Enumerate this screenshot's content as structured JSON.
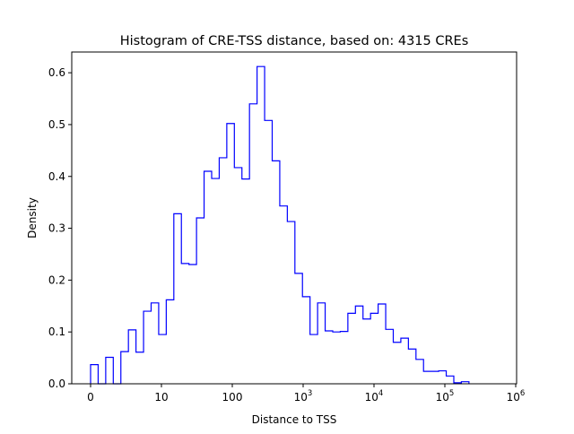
{
  "chart_data": {
    "type": "histogram-step",
    "title": "Histogram of CRE-TSS distance, based on: 4315 CREs",
    "xlabel": "Distance to TSS",
    "ylabel": "Density",
    "x_scale": "log10(distance+1)",
    "xlim": [
      -0.3,
      6
    ],
    "ylim": [
      0,
      0.64
    ],
    "x_ticks": [
      {
        "value": 0,
        "label": "0",
        "sup": ""
      },
      {
        "value": 1,
        "label": "10",
        "sup": ""
      },
      {
        "value": 2,
        "label": "100",
        "sup": ""
      },
      {
        "value": 3,
        "label": "10",
        "sup": "3"
      },
      {
        "value": 4,
        "label": "10",
        "sup": "4"
      },
      {
        "value": 5,
        "label": "10",
        "sup": "5"
      },
      {
        "value": 6,
        "label": "10",
        "sup": "6"
      }
    ],
    "y_ticks": [
      {
        "value": 0.0,
        "label": "0.0"
      },
      {
        "value": 0.1,
        "label": "0.1"
      },
      {
        "value": 0.2,
        "label": "0.2"
      },
      {
        "value": 0.3,
        "label": "0.3"
      },
      {
        "value": 0.4,
        "label": "0.4"
      },
      {
        "value": 0.5,
        "label": "0.5"
      },
      {
        "value": 0.6,
        "label": "0.6"
      }
    ],
    "bin_start": 0,
    "bin_end": 5.34,
    "densities": [
      0.037,
      0.0,
      0.051,
      0.0,
      0.062,
      0.104,
      0.061,
      0.14,
      0.156,
      0.095,
      0.162,
      0.328,
      0.232,
      0.23,
      0.32,
      0.41,
      0.396,
      0.436,
      0.502,
      0.417,
      0.395,
      0.54,
      0.612,
      0.508,
      0.43,
      0.343,
      0.313,
      0.213,
      0.168,
      0.095,
      0.156,
      0.102,
      0.1,
      0.101,
      0.136,
      0.15,
      0.125,
      0.136,
      0.154,
      0.105,
      0.08,
      0.088,
      0.067,
      0.047,
      0.024,
      0.024,
      0.025,
      0.015,
      0.002,
      0.004
    ],
    "line_color": "#0000ff",
    "grid": false
  }
}
